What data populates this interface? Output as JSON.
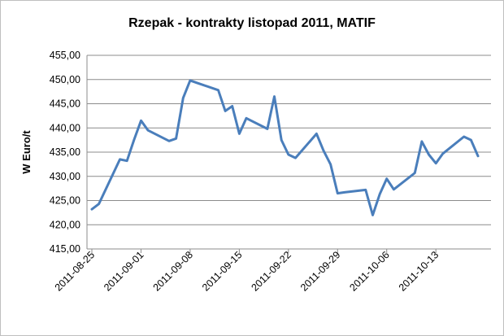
{
  "chart_data": {
    "type": "line",
    "title": "Rzepak - kontrakty listopad 2011, MATIF",
    "xlabel": "",
    "ylabel": "W Euro/t",
    "ylim": [
      415,
      455
    ],
    "yticks": [
      "415,00",
      "420,00",
      "425,00",
      "430,00",
      "435,00",
      "440,00",
      "445,00",
      "450,00",
      "455,00"
    ],
    "xticks": [
      "2011-08-25",
      "2011-09-01",
      "2011-09-08",
      "2011-09-15",
      "2011-09-22",
      "2011-09-29",
      "2011-10-06",
      "2011-10-13"
    ],
    "grid": true,
    "legend": "none",
    "color": "#4a7ebb",
    "series": [
      {
        "name": "",
        "x": [
          "2011-08-25",
          "2011-08-26",
          "2011-08-29",
          "2011-08-30",
          "2011-08-31",
          "2011-09-01",
          "2011-09-02",
          "2011-09-05",
          "2011-09-06",
          "2011-09-07",
          "2011-09-08",
          "2011-09-09",
          "2011-09-12",
          "2011-09-13",
          "2011-09-14",
          "2011-09-15",
          "2011-09-16",
          "2011-09-19",
          "2011-09-20",
          "2011-09-21",
          "2011-09-22",
          "2011-09-23",
          "2011-09-26",
          "2011-09-27",
          "2011-09-28",
          "2011-09-29",
          "2011-09-30",
          "2011-10-03",
          "2011-10-04",
          "2011-10-05",
          "2011-10-06",
          "2011-10-07",
          "2011-10-10",
          "2011-10-11",
          "2011-10-12",
          "2011-10-13",
          "2011-10-14",
          "2011-10-17",
          "2011-10-18",
          "2011-10-19"
        ],
        "values": [
          423.2,
          424.3,
          433.5,
          433.2,
          437.5,
          441.5,
          439.5,
          437.3,
          437.8,
          446.2,
          449.8,
          449.3,
          447.8,
          443.5,
          444.5,
          438.8,
          442.0,
          439.8,
          446.5,
          437.5,
          434.5,
          433.8,
          438.8,
          435.3,
          432.5,
          426.5,
          426.7,
          427.2,
          422.0,
          426.3,
          429.5,
          427.3,
          430.7,
          437.2,
          434.5,
          432.7,
          434.7,
          438.2,
          437.5,
          434.2
        ]
      }
    ]
  }
}
